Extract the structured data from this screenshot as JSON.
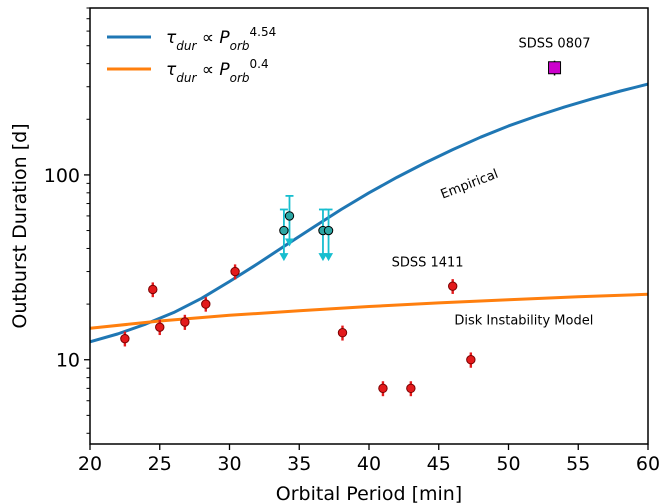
{
  "chart_data": {
    "type": "scatter",
    "xlabel": "Orbital Period [min]",
    "ylabel": "Outburst Duration [d]",
    "xlim": [
      20,
      60
    ],
    "ylim": [
      3.5,
      800
    ],
    "yscale": "log",
    "x_ticks": [
      20,
      25,
      30,
      35,
      40,
      45,
      50,
      55,
      60
    ],
    "x_tick_labels": [
      "20",
      "25",
      "30",
      "35",
      "40",
      "45",
      "50",
      "55",
      "60"
    ],
    "y_ticks": [
      10,
      100
    ],
    "y_tick_labels": [
      "10",
      "100"
    ],
    "legend_position": "top-left",
    "legend": [
      {
        "text": "τ_dur ∝ P_orb^4.54",
        "base": "τ",
        "base_sub": "dur",
        "rel": " ∝ ",
        "var": "P",
        "var_sub": "orb",
        "exp": "4.54",
        "color": "#1f77b4"
      },
      {
        "text": "τ_dur ∝ P_orb^0.4",
        "base": "τ",
        "base_sub": "dur",
        "rel": " ∝ ",
        "var": "P",
        "var_sub": "orb",
        "exp": "0.4",
        "color": "#ff7f0e"
      }
    ],
    "curves": [
      {
        "color": "#1f77b4",
        "label": "Empirical",
        "x": [
          20,
          22,
          24,
          26,
          28,
          30,
          32,
          34,
          36,
          38,
          40,
          42,
          44,
          46,
          48,
          50,
          52,
          54,
          56,
          58,
          60
        ],
        "y": [
          12.5,
          13.8,
          15.6,
          18.0,
          21.5,
          26.5,
          33.0,
          41.5,
          52.0,
          65.0,
          80.0,
          97.0,
          116,
          137,
          160,
          184,
          208,
          233,
          258,
          284,
          310
        ]
      },
      {
        "color": "#ff7f0e",
        "label": "Disk Instability Model",
        "x": [
          20,
          25,
          30,
          35,
          40,
          45,
          50,
          55,
          60
        ],
        "y": [
          14.8,
          16.2,
          17.4,
          18.4,
          19.4,
          20.3,
          21.1,
          21.9,
          22.6
        ]
      }
    ],
    "points": [
      {
        "x": 22.5,
        "y": 13,
        "err": 1.2
      },
      {
        "x": 24.5,
        "y": 24,
        "err": 2.2
      },
      {
        "x": 25.0,
        "y": 15,
        "err": 1.4
      },
      {
        "x": 26.8,
        "y": 16,
        "err": 1.5
      },
      {
        "x": 28.3,
        "y": 20,
        "err": 1.8
      },
      {
        "x": 30.4,
        "y": 30,
        "err": 2.8
      },
      {
        "x": 38.1,
        "y": 14,
        "err": 1.3
      },
      {
        "x": 41.0,
        "y": 7,
        "err": 0.65
      },
      {
        "x": 43.0,
        "y": 7,
        "err": 0.65
      },
      {
        "x": 46.0,
        "y": 25,
        "err": 2.3
      },
      {
        "x": 47.3,
        "y": 10,
        "err": 0.95
      }
    ],
    "upper_limits": [
      {
        "x": 33.9,
        "y": 50,
        "top": 65,
        "arrow_to": 35
      },
      {
        "x": 34.3,
        "y": 60,
        "top": 77,
        "arrow_to": 42
      },
      {
        "x": 36.7,
        "y": 50,
        "top": 65,
        "arrow_to": 35
      },
      {
        "x": 37.1,
        "y": 50,
        "top": 65,
        "arrow_to": 35
      }
    ],
    "special_point": {
      "x": 53.3,
      "y": 380,
      "err": 35,
      "label": "SDSS 0807",
      "color": "#cc00cc"
    },
    "annotations": [
      {
        "text": "SDSS 0807",
        "x": 53.3,
        "y": 490
      },
      {
        "text": "SDSS 1411",
        "x": 44.2,
        "y": 32
      },
      {
        "text": "Empirical",
        "x": 47.3,
        "y": 85
      },
      {
        "text": "Disk Instability Model",
        "x": 51.1,
        "y": 15.5
      }
    ],
    "colors": {
      "empirical": "#1f77b4",
      "model": "#ff7f0e",
      "points": "#e31a1c",
      "upper_limits": "#17becf",
      "upper_limit_markers": "#2ca6a4"
    }
  }
}
